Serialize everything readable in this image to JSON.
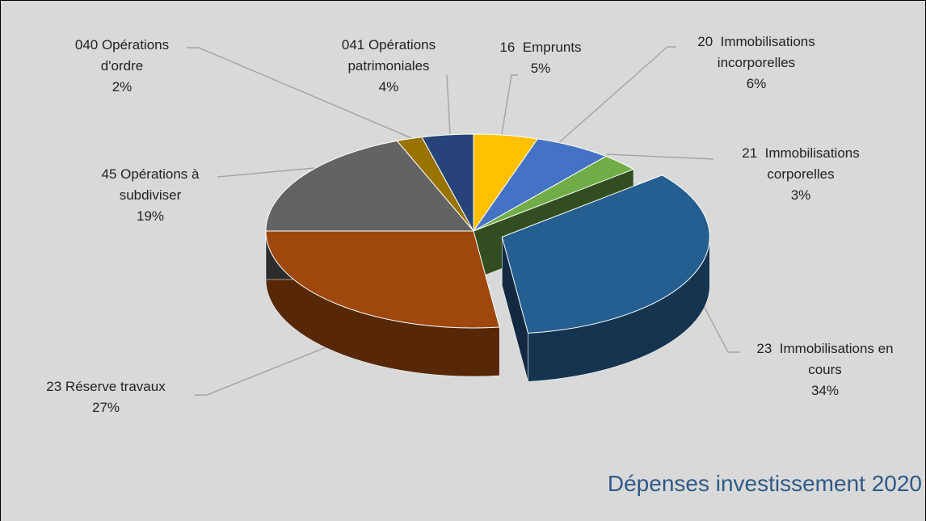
{
  "chart_data": {
    "type": "pie",
    "title": "Dépenses investissement 2020",
    "categories": [
      "16  Emprunts",
      "20  Immobilisations incorporelles",
      "21  Immobilisations corporelles",
      "23  Immobilisations en cours",
      "23 Réserve travaux",
      "45 Opérations à subdiviser",
      "040 Opérations d'ordre",
      "041 Opérations patrimoniales"
    ],
    "values": [
      5,
      6,
      3,
      34,
      27,
      19,
      2,
      4
    ],
    "value_labels": [
      "5%",
      "6%",
      "3%",
      "34%",
      "27%",
      "19%",
      "2%",
      "4%"
    ],
    "colors": [
      "#ffc000",
      "#4472c4",
      "#70ad47",
      "#255e91",
      "#9e480e",
      "#636363",
      "#997300",
      "#264478"
    ],
    "exploded": [
      3
    ]
  }
}
